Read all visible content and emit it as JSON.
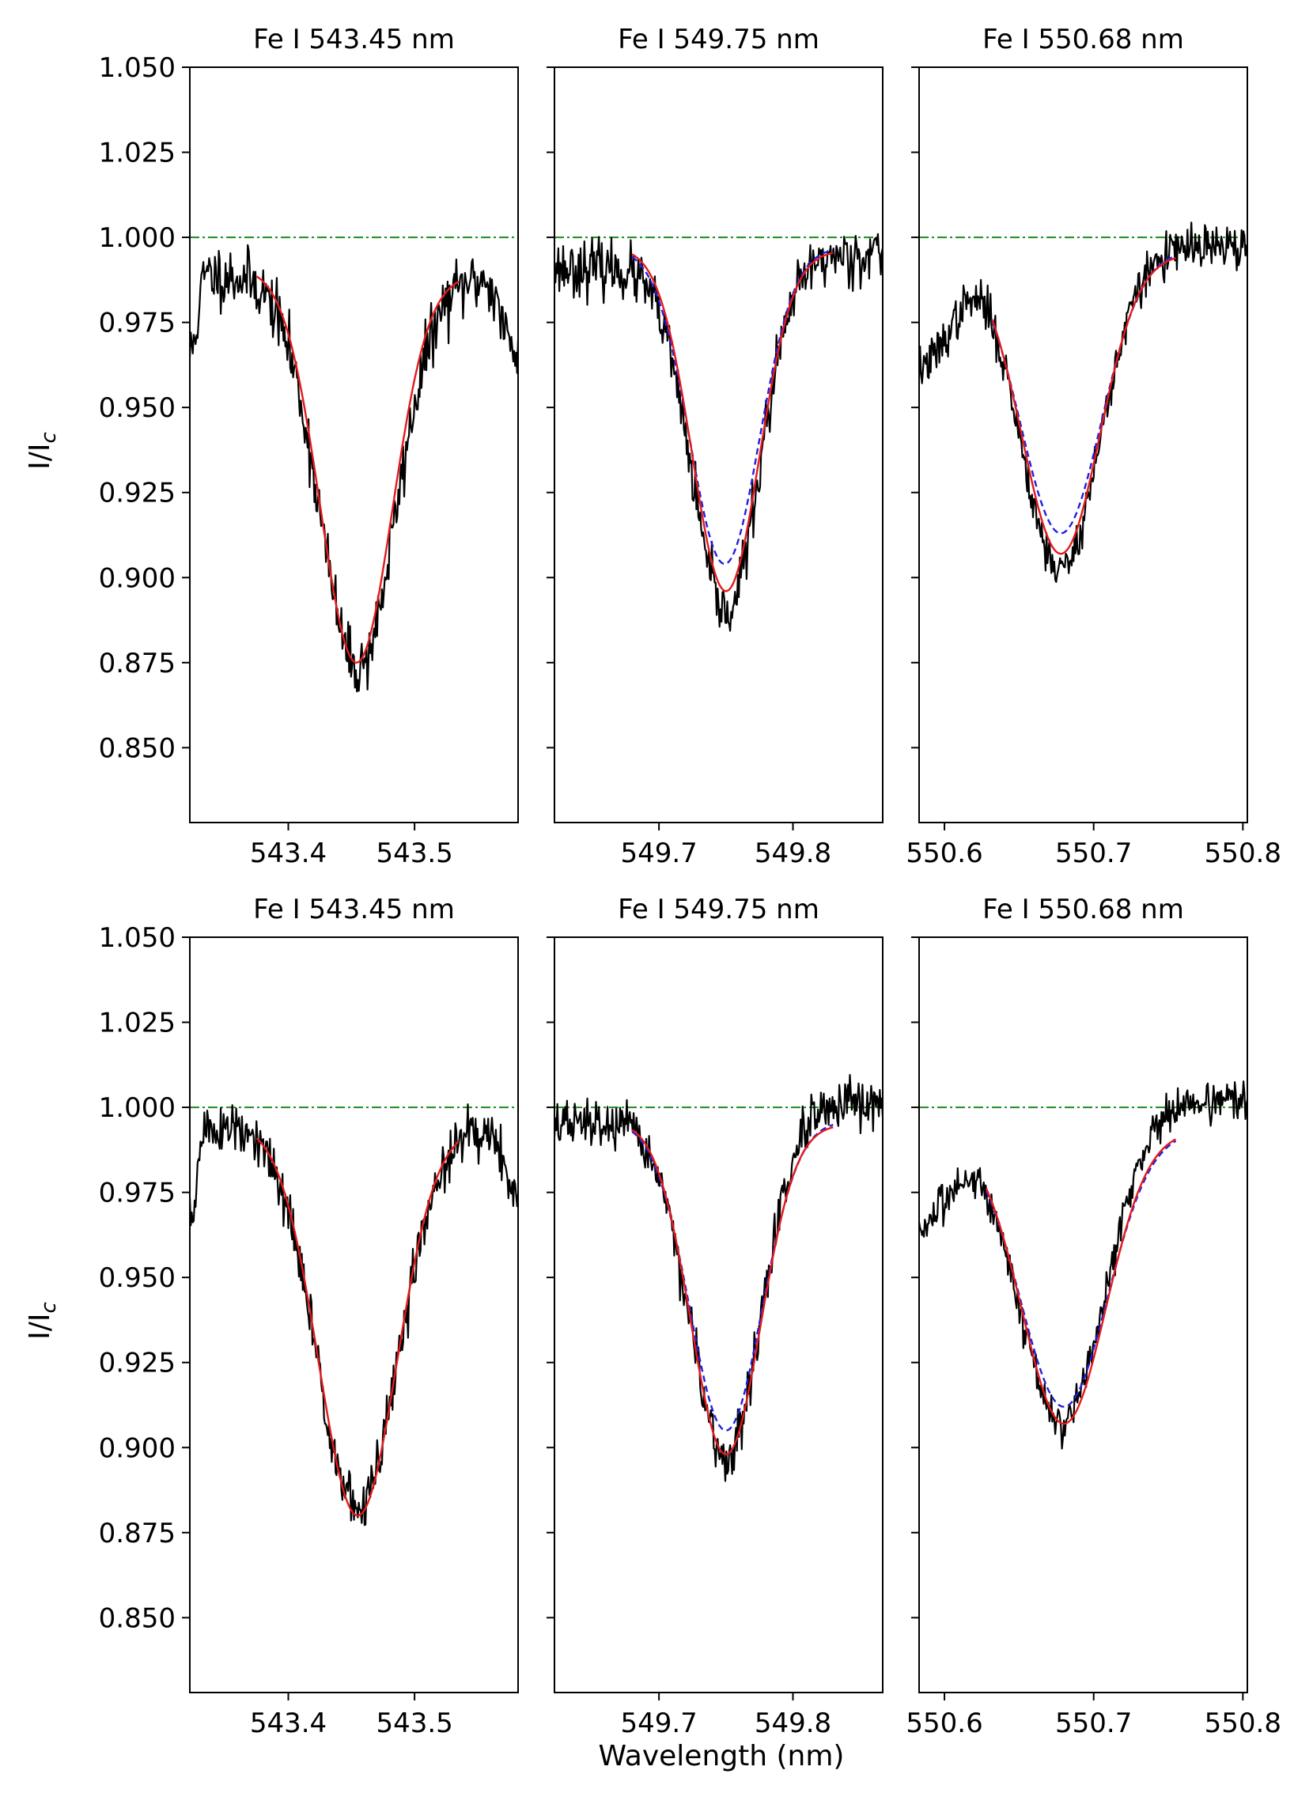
{
  "figure": {
    "ylabel_main": "I/I",
    "ylabel_sub": "c",
    "xlabel": "Wavelength (nm)",
    "colors": {
      "observed": "#000000",
      "fit": "#e41a1c",
      "model_dashed": "#1f1fe0",
      "continuum": "#1a8a1a"
    }
  },
  "chart_data": [
    {
      "type": "line",
      "title": "Fe I 543.45 nm",
      "xlim": [
        543.322,
        543.582
      ],
      "ylim": [
        0.828,
        1.05
      ],
      "xticks": [
        543.4,
        543.5
      ],
      "xtick_labels": [
        "543.4",
        "543.5"
      ],
      "yticks": [
        0.85,
        0.875,
        0.9,
        0.925,
        0.95,
        0.975,
        1.0,
        1.025,
        1.05
      ],
      "ytick_labels": [
        "0.850",
        "0.875",
        "0.900",
        "0.925",
        "0.950",
        "0.975",
        "1.000",
        "1.025",
        "1.050"
      ],
      "continuum": 1.0,
      "observed": {
        "wing_left": 0.989,
        "wing_right": 0.988,
        "edge_left": 0.966,
        "edge_right": 0.965,
        "rise_left": [
          543.322,
          543.335
        ],
        "fall_right": [
          543.555,
          543.582
        ],
        "noise": 0.0045,
        "seed": 11
      },
      "line": {
        "center": 543.455,
        "depth": 0.115,
        "half_width": 0.03
      },
      "fit": {
        "x_range": [
          543.375,
          543.535
        ],
        "left": 0.991,
        "right": 0.989,
        "min": 0.875,
        "center": 543.454,
        "half_width": 0.0285
      },
      "model": null
    },
    {
      "type": "line",
      "title": "Fe I 549.75 nm",
      "xlim": [
        549.622,
        549.867
      ],
      "ylim": [
        0.828,
        1.05
      ],
      "xticks": [
        549.7,
        549.8
      ],
      "xtick_labels": [
        "549.7",
        "549.8"
      ],
      "yticks": [
        0.85,
        0.875,
        0.9,
        0.925,
        0.95,
        0.975,
        1.0,
        1.025,
        1.05
      ],
      "ytick_labels": [
        "",
        "",
        "",
        "",
        "",
        "",
        "",
        "",
        ""
      ],
      "continuum": 1.0,
      "observed": {
        "wing_left": 0.991,
        "wing_right": 0.995,
        "edge_left": 0.986,
        "edge_right": 0.997,
        "rise_left": null,
        "fall_right": null,
        "noise": 0.004,
        "seed": 23
      },
      "line": {
        "center": 549.75,
        "depth": 0.103,
        "half_width": 0.025
      },
      "fit": {
        "x_range": [
          549.68,
          549.83
        ],
        "left": 0.997,
        "right": 0.996,
        "min": 0.896,
        "center": 549.75,
        "half_width": 0.025
      },
      "model": {
        "x_range": [
          549.68,
          549.83
        ],
        "left": 0.997,
        "right": 0.997,
        "min": 0.904,
        "center": 549.749,
        "half_width": 0.026
      }
    },
    {
      "type": "line",
      "title": "Fe I 550.68 nm",
      "xlim": [
        550.583,
        550.803
      ],
      "ylim": [
        0.828,
        1.05
      ],
      "xticks": [
        550.6,
        550.7,
        550.8
      ],
      "xtick_labels": [
        "550.6",
        "550.7",
        "550.8"
      ],
      "yticks": [
        0.85,
        0.875,
        0.9,
        0.925,
        0.95,
        0.975,
        1.0,
        1.025,
        1.05
      ],
      "ytick_labels": [
        "",
        "",
        "",
        "",
        "",
        "",
        "",
        "",
        ""
      ],
      "continuum": 1.0,
      "observed": {
        "wing_left": 0.994,
        "wing_right": 0.997,
        "edge_left": 0.962,
        "edge_right": 0.999,
        "rise_left": [
          550.583,
          550.632
        ],
        "fall_right": null,
        "noise": 0.0032,
        "seed": 37
      },
      "line": {
        "center": 550.678,
        "depth": 0.093,
        "half_width": 0.026
      },
      "fit": {
        "x_range": [
          550.632,
          550.755
        ],
        "left": 0.994,
        "right": 0.995,
        "min": 0.907,
        "center": 550.678,
        "half_width": 0.026
      },
      "model": {
        "x_range": [
          550.632,
          550.755
        ],
        "left": 0.994,
        "right": 0.996,
        "min": 0.913,
        "center": 550.678,
        "half_width": 0.027
      }
    },
    {
      "type": "line",
      "title": "Fe I 543.45 nm",
      "xlim": [
        543.322,
        543.582
      ],
      "ylim": [
        0.828,
        1.05
      ],
      "xticks": [
        543.4,
        543.5
      ],
      "xtick_labels": [
        "543.4",
        "543.5"
      ],
      "yticks": [
        0.85,
        0.875,
        0.9,
        0.925,
        0.95,
        0.975,
        1.0,
        1.025,
        1.05
      ],
      "ytick_labels": [
        "0.850",
        "0.875",
        "0.900",
        "0.925",
        "0.950",
        "0.975",
        "1.000",
        "1.025",
        "1.050"
      ],
      "continuum": 1.0,
      "observed": {
        "wing_left": 0.994,
        "wing_right": 0.994,
        "edge_left": 0.968,
        "edge_right": 0.972,
        "rise_left": [
          543.322,
          543.335
        ],
        "fall_right": [
          543.56,
          543.582
        ],
        "noise": 0.004,
        "seed": 51
      },
      "line": {
        "center": 543.455,
        "depth": 0.112,
        "half_width": 0.032
      },
      "fit": {
        "x_range": [
          543.375,
          543.535
        ],
        "left": 0.995,
        "right": 0.994,
        "min": 0.88,
        "center": 543.455,
        "half_width": 0.031
      },
      "model": null
    },
    {
      "type": "line",
      "title": "Fe I 549.75 nm",
      "xlim": [
        549.622,
        549.867
      ],
      "ylim": [
        0.828,
        1.05
      ],
      "xticks": [
        549.7,
        549.8
      ],
      "xtick_labels": [
        "549.7",
        "549.8"
      ],
      "yticks": [
        0.85,
        0.875,
        0.9,
        0.925,
        0.95,
        0.975,
        1.0,
        1.025,
        1.05
      ],
      "ytick_labels": [
        "",
        "",
        "",
        "",
        "",
        "",
        "",
        "",
        ""
      ],
      "continuum": 1.0,
      "observed": {
        "wing_left": 0.995,
        "wing_right": 1.0,
        "edge_left": 0.995,
        "edge_right": 1.001,
        "rise_left": null,
        "fall_right": null,
        "noise": 0.0035,
        "seed": 67
      },
      "line": {
        "center": 549.75,
        "depth": 0.101,
        "half_width": 0.026
      },
      "fit": {
        "x_range": [
          549.68,
          549.83
        ],
        "left": 0.996,
        "right": 0.995,
        "min": 0.898,
        "center": 549.75,
        "half_width": 0.026
      },
      "model": {
        "x_range": [
          549.68,
          549.83
        ],
        "left": 0.996,
        "right": 0.996,
        "min": 0.905,
        "center": 549.75,
        "half_width": 0.027
      }
    },
    {
      "type": "line",
      "title": "Fe I 550.68 nm",
      "xlim": [
        550.583,
        550.803
      ],
      "ylim": [
        0.828,
        1.05
      ],
      "xticks": [
        550.6,
        550.7,
        550.8
      ],
      "xtick_labels": [
        "550.6",
        "550.7",
        "550.8"
      ],
      "yticks": [
        0.85,
        0.875,
        0.9,
        0.925,
        0.95,
        0.975,
        1.0,
        1.025,
        1.05
      ],
      "ytick_labels": [
        "",
        "",
        "",
        "",
        "",
        "",
        "",
        "",
        ""
      ],
      "continuum": 1.0,
      "observed": {
        "wing_left": 0.99,
        "wing_right": 1.002,
        "edge_left": 0.965,
        "edge_right": 1.003,
        "rise_left": [
          550.583,
          550.628
        ],
        "fall_right": null,
        "noise": 0.0028,
        "seed": 83
      },
      "line": {
        "center": 550.68,
        "depth": 0.089,
        "half_width": 0.028
      },
      "fit": {
        "x_range": [
          550.628,
          550.755
        ],
        "left": 0.991,
        "right": 0.993,
        "min": 0.907,
        "center": 550.68,
        "half_width": 0.028
      },
      "model": {
        "x_range": [
          550.628,
          550.755
        ],
        "left": 0.991,
        "right": 0.993,
        "min": 0.912,
        "center": 550.68,
        "half_width": 0.029
      }
    }
  ]
}
